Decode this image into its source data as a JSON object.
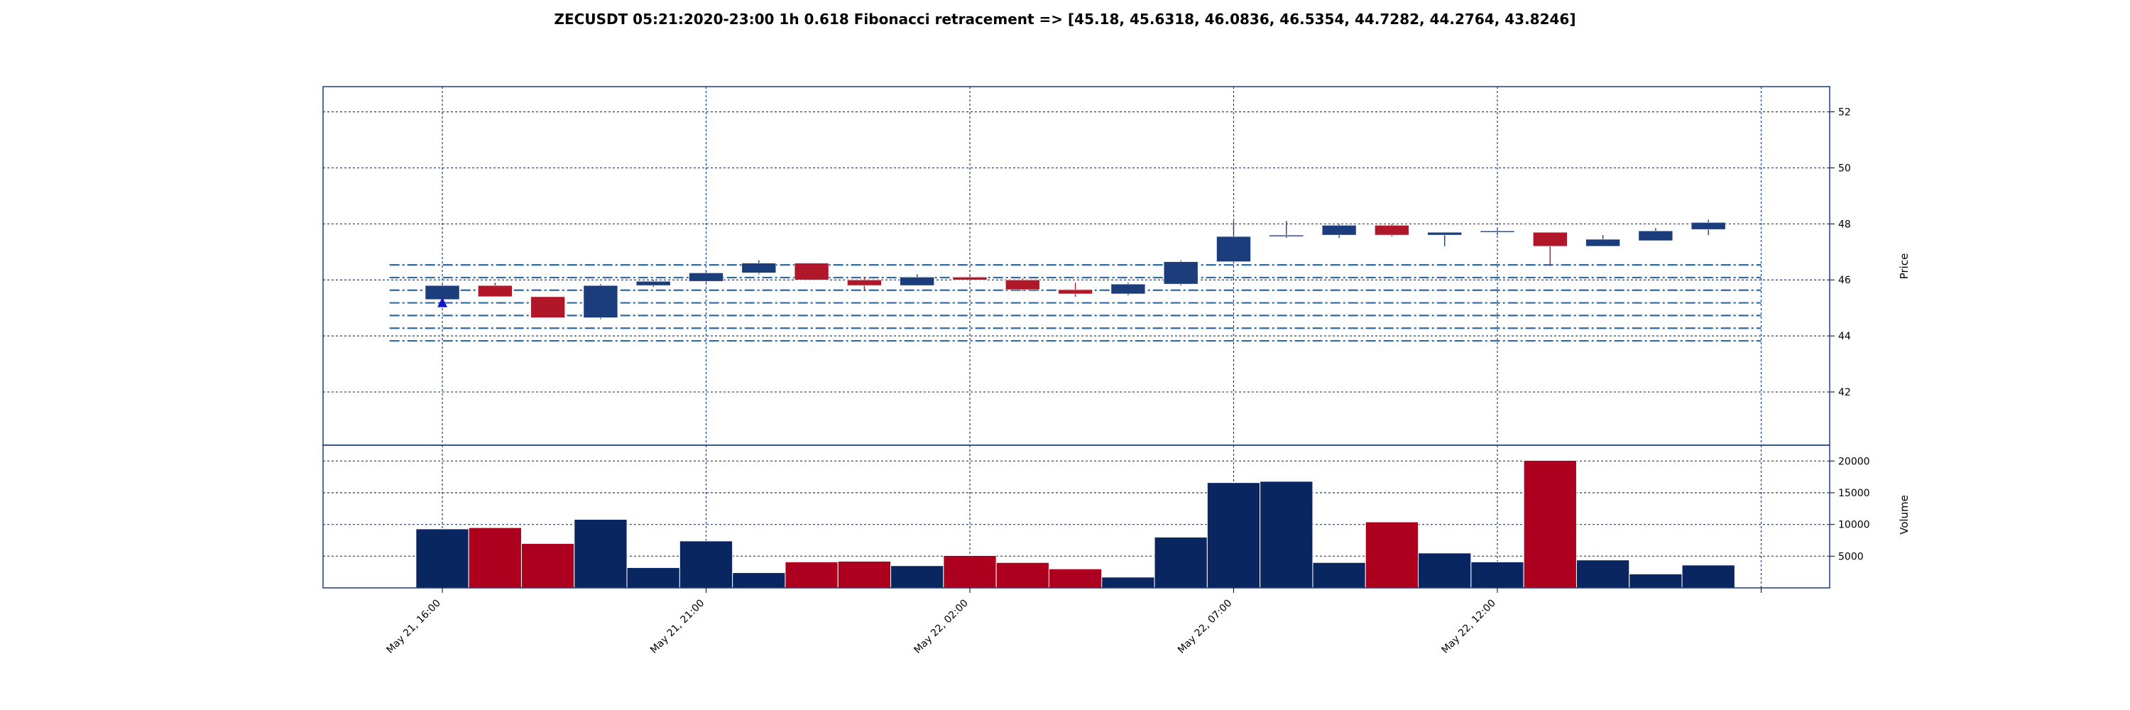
{
  "chart_data": {
    "type": "candlestick",
    "title": "ZECUSDT 05:21:2020-23:00 1h 0.618 Fibonacci retracement => [45.18, 45.6318, 46.0836, 46.5354, 44.7282, 44.2764, 43.8246]",
    "colors": {
      "up": "#1c3d7c",
      "down": "#b0182a",
      "up_volume": "#0a2660",
      "down_volume": "#ac001e",
      "grid": "#1c3d7c",
      "fib_line": "#2f6aa0",
      "marker": "#1515d0"
    },
    "price_panel": {
      "ylabel": "Price",
      "ylim": [
        40.1,
        52.9
      ],
      "yticks": [
        42,
        44,
        46,
        48,
        50,
        52
      ]
    },
    "volume_panel": {
      "ylabel": "Volume",
      "ylim": [
        0,
        22500
      ],
      "yticks": [
        5000,
        10000,
        15000,
        20000
      ]
    },
    "x_tick_labels": [
      {
        "index": 0,
        "label": "May 21, 16:00"
      },
      {
        "index": 5,
        "label": "May 21, 21:00"
      },
      {
        "index": 10,
        "label": "May 22, 02:00"
      },
      {
        "index": 15,
        "label": "May 22, 07:00"
      },
      {
        "index": 20,
        "label": "May 22, 12:00"
      },
      {
        "index": 25,
        "label": ""
      }
    ],
    "fibonacci_levels": [
      45.18,
      45.6318,
      46.0836,
      46.5354,
      44.7282,
      44.2764,
      43.8246
    ],
    "fib_start_index": -1,
    "fib_end_index": 25,
    "marker": {
      "index": 0,
      "value": 45.18,
      "shape": "triangle-up"
    },
    "candles": [
      {
        "open": 45.3,
        "high": 45.85,
        "low": 45.1,
        "close": 45.8,
        "volume": 9300
      },
      {
        "open": 45.8,
        "high": 45.9,
        "low": 45.4,
        "close": 45.4,
        "volume": 9500
      },
      {
        "open": 45.4,
        "high": 45.4,
        "low": 44.65,
        "close": 44.65,
        "volume": 7000
      },
      {
        "open": 44.65,
        "high": 45.85,
        "low": 44.6,
        "close": 45.8,
        "volume": 10800
      },
      {
        "open": 45.8,
        "high": 46.0,
        "low": 45.75,
        "close": 45.95,
        "volume": 3200
      },
      {
        "open": 45.95,
        "high": 46.3,
        "low": 45.9,
        "close": 46.25,
        "volume": 7400
      },
      {
        "open": 46.25,
        "high": 46.7,
        "low": 46.2,
        "close": 46.6,
        "volume": 2400
      },
      {
        "open": 46.6,
        "high": 46.6,
        "low": 46.0,
        "close": 46.0,
        "volume": 4100
      },
      {
        "open": 46.0,
        "high": 46.1,
        "low": 45.6,
        "close": 45.8,
        "volume": 4200
      },
      {
        "open": 45.8,
        "high": 46.2,
        "low": 45.8,
        "close": 46.1,
        "volume": 3500
      },
      {
        "open": 46.1,
        "high": 46.2,
        "low": 45.95,
        "close": 46.0,
        "volume": 5100
      },
      {
        "open": 46.0,
        "high": 46.05,
        "low": 45.6,
        "close": 45.65,
        "volume": 4000
      },
      {
        "open": 45.65,
        "high": 45.9,
        "low": 45.4,
        "close": 45.5,
        "volume": 3000
      },
      {
        "open": 45.5,
        "high": 45.9,
        "low": 45.45,
        "close": 45.85,
        "volume": 1700
      },
      {
        "open": 45.85,
        "high": 46.7,
        "low": 45.8,
        "close": 46.65,
        "volume": 8000
      },
      {
        "open": 46.65,
        "high": 48.1,
        "low": 46.6,
        "close": 47.55,
        "volume": 16600
      },
      {
        "open": 47.55,
        "high": 48.1,
        "low": 47.5,
        "close": 47.6,
        "volume": 16800
      },
      {
        "open": 47.6,
        "high": 48.0,
        "low": 47.5,
        "close": 47.95,
        "volume": 4000
      },
      {
        "open": 47.95,
        "high": 48.0,
        "low": 47.55,
        "close": 47.6,
        "volume": 10400
      },
      {
        "open": 47.6,
        "high": 47.7,
        "low": 47.2,
        "close": 47.7,
        "volume": 5500
      },
      {
        "open": 47.7,
        "high": 47.8,
        "low": 47.6,
        "close": 47.75,
        "volume": 4100
      },
      {
        "open": 47.7,
        "high": 47.7,
        "low": 46.5,
        "close": 47.2,
        "volume": 20100
      },
      {
        "open": 47.2,
        "high": 47.6,
        "low": 47.2,
        "close": 47.45,
        "volume": 4400
      },
      {
        "open": 47.4,
        "high": 47.85,
        "low": 47.4,
        "close": 47.75,
        "volume": 2200
      },
      {
        "open": 47.8,
        "high": 48.15,
        "low": 47.6,
        "close": 48.05,
        "volume": 3600
      }
    ]
  }
}
